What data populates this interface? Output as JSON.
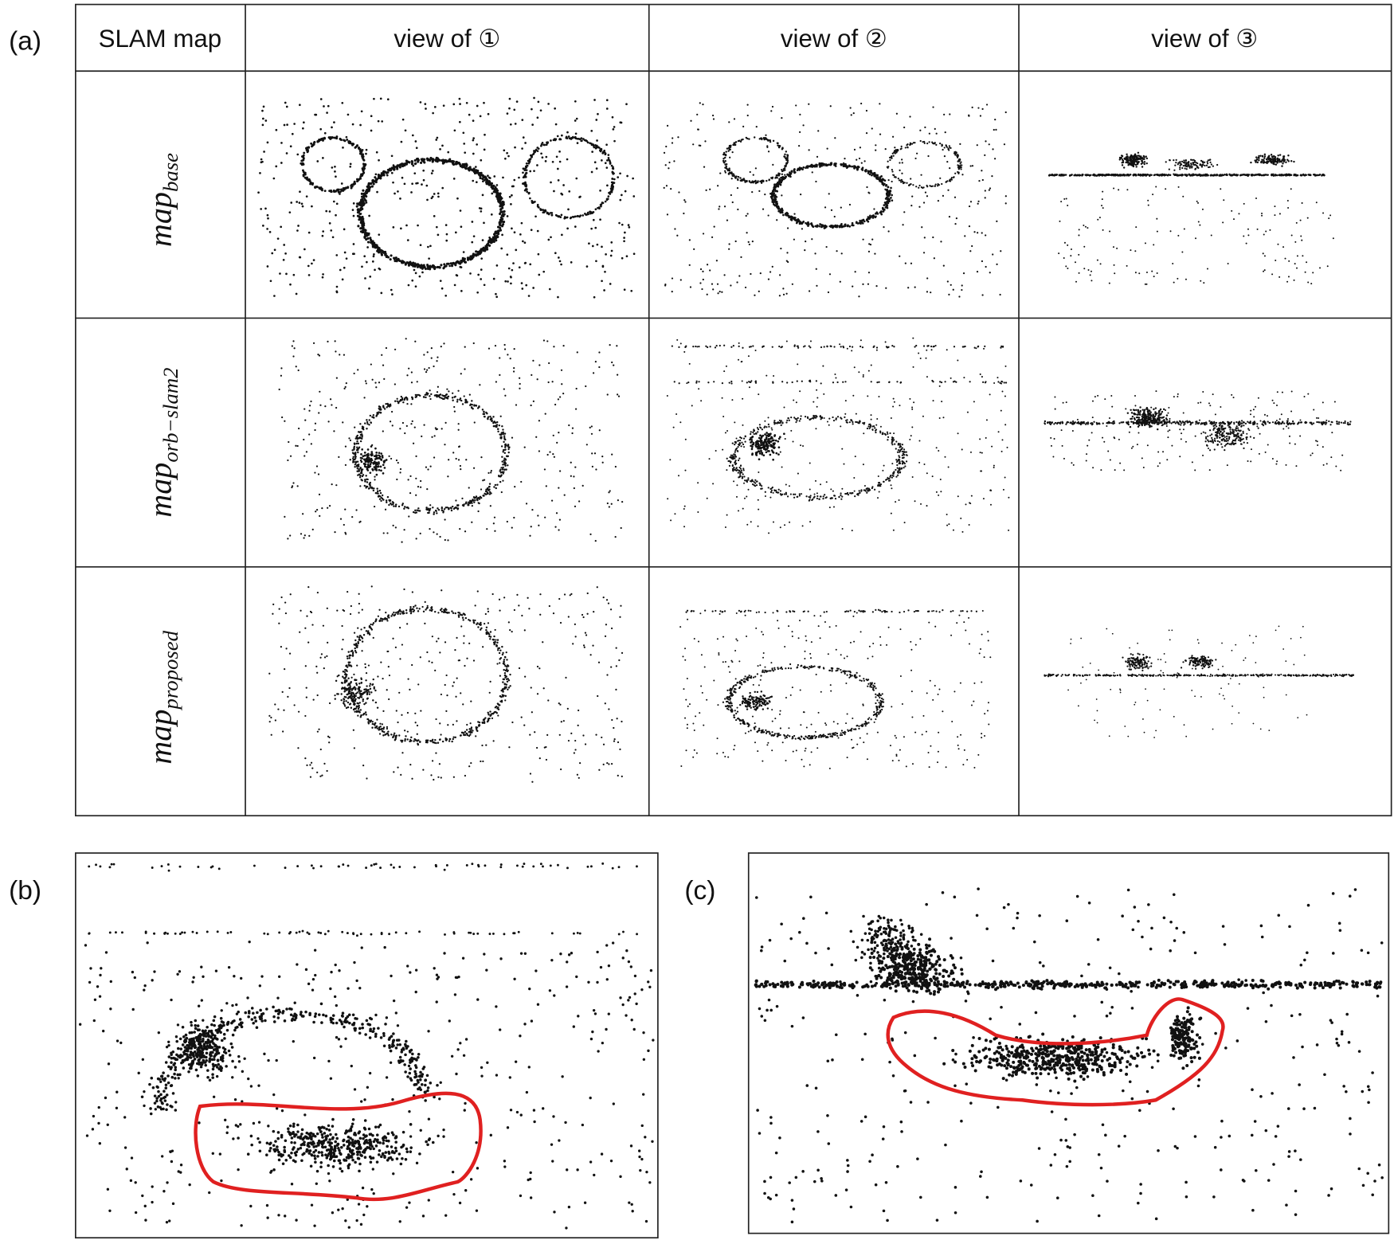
{
  "panel_labels": [
    "(a)",
    "(b)",
    "(c)"
  ],
  "table": {
    "header": [
      "SLAM map",
      "view of ①",
      "view of ②",
      "view of ③"
    ],
    "rows": [
      {
        "main": "map",
        "sub": "base"
      },
      {
        "main": "map",
        "sub": "orb−slam2"
      },
      {
        "main": "map",
        "sub": "proposed"
      }
    ]
  }
}
